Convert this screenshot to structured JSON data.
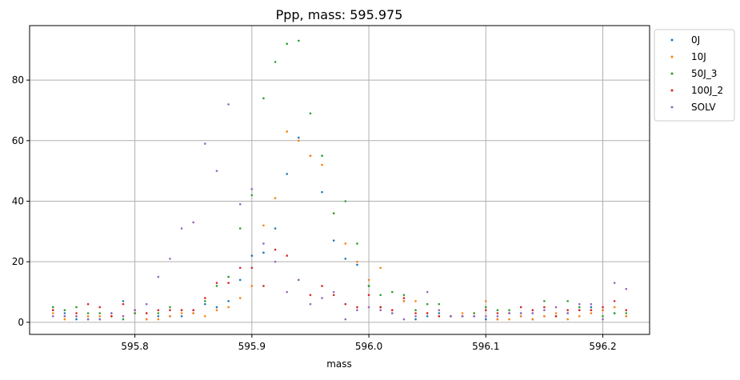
{
  "chart_data": {
    "type": "scatter",
    "title": "Ppp, mass: 595.975",
    "xlabel": "mass",
    "ylabel": "",
    "xlim": [
      595.71,
      596.24
    ],
    "ylim": [
      -4,
      98
    ],
    "xticks": [
      595.8,
      595.9,
      596.0,
      596.1,
      596.2
    ],
    "xtick_labels": [
      "595.8",
      "595.9",
      "596.0",
      "596.1",
      "596.2"
    ],
    "yticks": [
      0,
      20,
      40,
      60,
      80
    ],
    "ytick_labels": [
      "0",
      "20",
      "40",
      "60",
      "80"
    ],
    "grid": true,
    "legend_position": "outside-top-right",
    "x": [
      595.73,
      595.74,
      595.75,
      595.76,
      595.77,
      595.78,
      595.79,
      595.8,
      595.81,
      595.82,
      595.83,
      595.84,
      595.85,
      595.86,
      595.87,
      595.88,
      595.89,
      595.9,
      595.91,
      595.92,
      595.93,
      595.94,
      595.95,
      595.96,
      595.97,
      595.98,
      595.99,
      596.0,
      596.01,
      596.02,
      596.03,
      596.04,
      596.05,
      596.06,
      596.07,
      596.08,
      596.09,
      596.1,
      596.11,
      596.12,
      596.13,
      596.14,
      596.15,
      596.16,
      596.17,
      596.18,
      596.19,
      596.2,
      596.21,
      596.22
    ],
    "series": [
      {
        "name": "0J",
        "color": "#1f77b4",
        "values": [
          4,
          3,
          1,
          1,
          1,
          2,
          7,
          3,
          1,
          2,
          2,
          2,
          3,
          6,
          5,
          7,
          14,
          22,
          23,
          31,
          49,
          61,
          55,
          43,
          27,
          21,
          19,
          12,
          5,
          3,
          7,
          1,
          2,
          3,
          2,
          2,
          2,
          1,
          1,
          3,
          2,
          1,
          2,
          2,
          3,
          4,
          5,
          4,
          3,
          2
        ]
      },
      {
        "name": "10J",
        "color": "#ff7f0e",
        "values": [
          3,
          1,
          2,
          2,
          2,
          2,
          2,
          3,
          1,
          1,
          2,
          3,
          3,
          2,
          4,
          5,
          8,
          12,
          32,
          41,
          63,
          60,
          55,
          52,
          36,
          26,
          20,
          14,
          18,
          4,
          7,
          7,
          3,
          2,
          2,
          3,
          3,
          7,
          1,
          1,
          2,
          1,
          2,
          3,
          1,
          2,
          3,
          4,
          5,
          2
        ]
      },
      {
        "name": "50J_3",
        "color": "#2ca02c",
        "values": [
          5,
          4,
          5,
          3,
          3,
          3,
          1,
          3,
          3,
          3,
          5,
          4,
          4,
          7,
          12,
          15,
          31,
          42,
          74,
          86,
          92,
          93,
          69,
          55,
          36,
          40,
          26,
          12,
          9,
          10,
          9,
          4,
          6,
          6,
          2,
          2,
          3,
          5,
          4,
          4,
          3,
          3,
          7,
          2,
          7,
          5,
          4,
          2,
          3,
          3
        ]
      },
      {
        "name": "100J_2",
        "color": "#d62728",
        "values": [
          4,
          2,
          3,
          6,
          5,
          2,
          6,
          4,
          3,
          4,
          4,
          4,
          4,
          8,
          13,
          13,
          18,
          18,
          12,
          24,
          22,
          14,
          9,
          12,
          9,
          6,
          5,
          9,
          5,
          4,
          8,
          3,
          3,
          2,
          2,
          2,
          2,
          4,
          3,
          3,
          5,
          4,
          5,
          2,
          4,
          4,
          4,
          5,
          7,
          4
        ]
      },
      {
        "name": "SOLV",
        "color": "#9467bd",
        "values": [
          2,
          2,
          2,
          1,
          1,
          3,
          2,
          4,
          6,
          15,
          21,
          31,
          33,
          59,
          50,
          72,
          39,
          44,
          26,
          20,
          10,
          14,
          6,
          8,
          10,
          1,
          4,
          5,
          4,
          3,
          1,
          2,
          10,
          4,
          2,
          2,
          2,
          2,
          2,
          3,
          3,
          3,
          4,
          5,
          3,
          6,
          6,
          1,
          13,
          11
        ]
      }
    ]
  }
}
